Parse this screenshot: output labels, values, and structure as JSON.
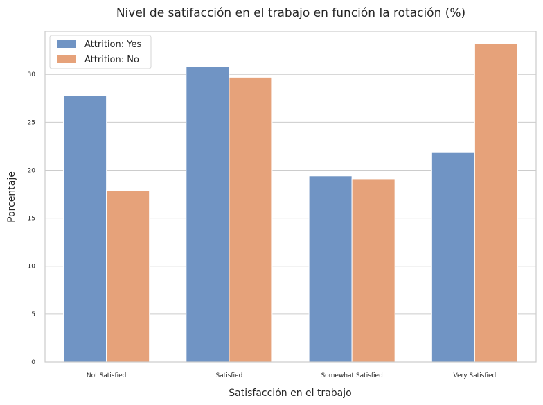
{
  "chart_data": {
    "type": "bar",
    "title": "Nivel de satifacción en el trabajo en función la rotación (%)",
    "xlabel": "Satisfacción en el trabajo",
    "ylabel": "Porcentaje",
    "categories": [
      "Not Satisfied",
      "Satisfied",
      "Somewhat Satisfied",
      "Very Satisfied"
    ],
    "series": [
      {
        "name": "Attrition: Yes",
        "color": "#7094c4",
        "values": [
          27.8,
          30.8,
          19.4,
          21.9
        ]
      },
      {
        "name": "Attrition: No",
        "color": "#e6a27a",
        "values": [
          17.9,
          29.7,
          19.1,
          33.2
        ]
      }
    ],
    "ylim": [
      0,
      34.5
    ],
    "yticks": [
      0,
      5,
      10,
      15,
      20,
      25,
      30
    ],
    "grid": "horizontal",
    "legend_position": "top-left"
  }
}
